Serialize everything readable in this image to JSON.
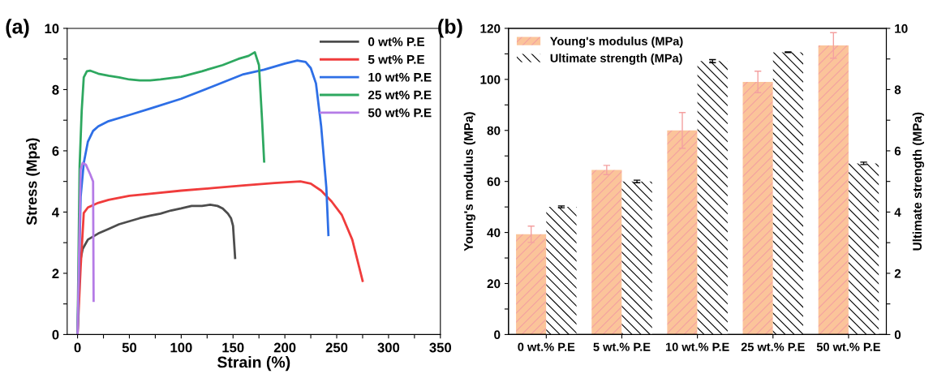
{
  "chart_data": [
    {
      "type": "line",
      "xlabel": "Strain (%)",
      "ylabel": "Stress (Mpa)",
      "annotations": [
        "(a)"
      ],
      "legend": "top right",
      "grid": false,
      "marker": "none",
      "line_style": "solid",
      "xlim": [
        -10,
        350
      ],
      "xticks": [
        0,
        {
          "value": 25,
          "label": null
        },
        50,
        {
          "value": 75,
          "label": null
        },
        100,
        {
          "value": 125,
          "label": null
        },
        150,
        {
          "value": 175,
          "label": null
        },
        200,
        {
          "value": 225,
          "label": null
        },
        250,
        {
          "value": 275,
          "label": null
        },
        300,
        {
          "value": 325,
          "label": null
        },
        350
      ],
      "ylim": [
        0,
        10
      ],
      "yticks": [
        0,
        {
          "value": 1,
          "label": null
        },
        2,
        {
          "value": 3,
          "label": null
        },
        4,
        {
          "value": 5,
          "label": null
        },
        6,
        {
          "value": 7,
          "label": null
        },
        8,
        {
          "value": 9,
          "label": null
        },
        10
      ],
      "series": [
        {
          "name": "0 wt% P.E",
          "color": "#4d4d4d",
          "x": [
            0,
            2,
            5,
            10,
            20,
            30,
            40,
            50,
            60,
            70,
            80,
            90,
            100,
            110,
            120,
            128,
            135,
            140,
            145,
            148,
            150,
            152
          ],
          "values": [
            0,
            2.3,
            2.8,
            3.1,
            3.3,
            3.45,
            3.6,
            3.7,
            3.8,
            3.88,
            3.95,
            4.05,
            4.12,
            4.2,
            4.2,
            4.24,
            4.2,
            4.12,
            3.95,
            3.8,
            3.55,
            2.5
          ]
        },
        {
          "name": "5 wt% P.E",
          "color": "#f03c3c",
          "x": [
            0,
            3,
            6,
            10,
            20,
            30,
            50,
            70,
            100,
            130,
            160,
            190,
            215,
            225,
            235,
            245,
            255,
            265,
            275
          ],
          "values": [
            0,
            2.2,
            3.97,
            4.15,
            4.3,
            4.4,
            4.53,
            4.6,
            4.7,
            4.78,
            4.87,
            4.95,
            5.0,
            4.93,
            4.7,
            4.35,
            3.9,
            3.1,
            1.75
          ]
        },
        {
          "name": "10 wt% P.E",
          "color": "#2e6fe6",
          "x": [
            0,
            3,
            6,
            10,
            15,
            20,
            30,
            50,
            70,
            100,
            130,
            160,
            180,
            200,
            212,
            220,
            225,
            230,
            235,
            240,
            242
          ],
          "values": [
            0,
            4.5,
            5.6,
            6.3,
            6.65,
            6.8,
            6.97,
            7.17,
            7.38,
            7.7,
            8.1,
            8.5,
            8.65,
            8.85,
            8.95,
            8.9,
            8.7,
            8.2,
            6.8,
            4.8,
            3.25
          ]
        },
        {
          "name": "25 wt% P.E",
          "color": "#2ea860",
          "x": [
            0,
            2,
            4,
            6,
            9,
            12,
            20,
            30,
            40,
            50,
            60,
            70,
            80,
            100,
            120,
            140,
            155,
            165,
            171,
            175,
            178,
            180
          ],
          "values": [
            0,
            5.5,
            7.3,
            8.4,
            8.6,
            8.62,
            8.52,
            8.45,
            8.4,
            8.33,
            8.3,
            8.3,
            8.33,
            8.42,
            8.6,
            8.8,
            9.0,
            9.1,
            9.22,
            8.8,
            7.0,
            5.65
          ]
        },
        {
          "name": "50 wt% P.E",
          "color": "#b57be6",
          "x": [
            0,
            3,
            5,
            8,
            10,
            12,
            15,
            15.5
          ],
          "values": [
            0,
            5.4,
            5.6,
            5.55,
            5.4,
            5.25,
            5.0,
            1.1
          ]
        }
      ]
    },
    {
      "type": "bar",
      "ylabel": "Young's modulus (MPa)",
      "y2label": "Ultimate strength (MPa)",
      "annotations": [
        "(b)"
      ],
      "legend": "top left",
      "grid": false,
      "categories": [
        "0 wt.% P.E",
        "5 wt.% P.E",
        "10 wt.% P.E",
        "25 wt.% P.E",
        "50 wt.% P.E"
      ],
      "ylim": [
        0,
        120
      ],
      "yticks": [
        0,
        {
          "value": 10,
          "label": null
        },
        20,
        {
          "value": 30,
          "label": null
        },
        40,
        {
          "value": 50,
          "label": null
        },
        60,
        {
          "value": 70,
          "label": null
        },
        80,
        {
          "value": 90,
          "label": null
        },
        100,
        {
          "value": 110,
          "label": null
        },
        120
      ],
      "y2lim": [
        0,
        10
      ],
      "y2ticks": [
        0,
        {
          "value": 1,
          "label": null
        },
        2,
        {
          "value": 3,
          "label": null
        },
        4,
        {
          "value": 5,
          "label": null
        },
        6,
        {
          "value": 7,
          "label": null
        },
        8,
        {
          "value": 9,
          "label": null
        },
        10
      ],
      "series": [
        {
          "name": "Young's modulus (MPa)",
          "color": "#fbc49a",
          "values": [
            39.3,
            64.5,
            80,
            99,
            113.3
          ],
          "errors": [
            3.2,
            1.8,
            7,
            4.2,
            5
          ]
        },
        {
          "name": "Ultimate strength (MPa)",
          "color": "#ffffff",
          "axis": "y2",
          "values": [
            4.17,
            5.0,
            8.93,
            9.22,
            5.59
          ],
          "errors": [
            0.03,
            0.04,
            0.05,
            0.01,
            0.04
          ]
        }
      ]
    }
  ]
}
